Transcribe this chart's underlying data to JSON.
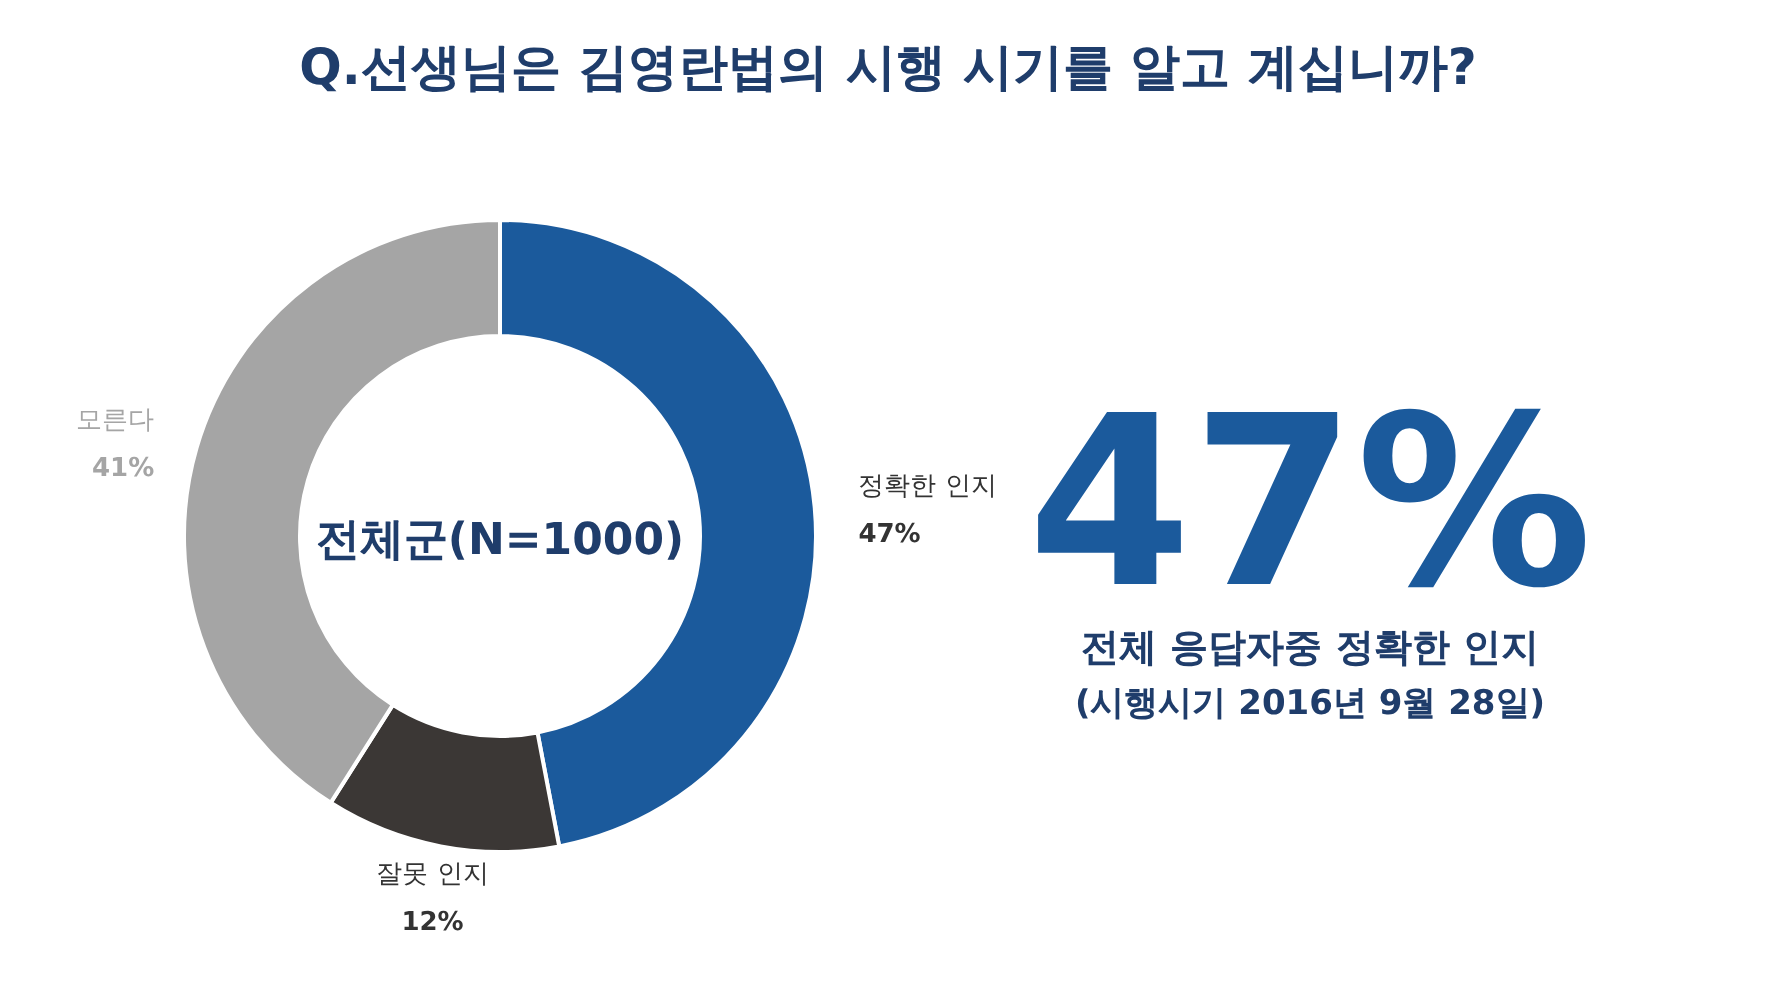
{
  "chart_data": {
    "type": "donut",
    "title": "Q.선생님은 김영란법의 시행 시기를 알고 계십니까?",
    "categories": [
      "정확한 인지",
      "잘못 인지",
      "모른다"
    ],
    "values": [
      47,
      12,
      41
    ],
    "colors": [
      "#1b5a9c",
      "#3b3735",
      "#a5a5a5"
    ],
    "value_labels": [
      "47%",
      "12%",
      "41%"
    ],
    "annotations": [
      "전체군(N=1000)",
      "47%",
      "전체 응답자중 정확한 인지",
      "(시행시기 2016년 9월 28일)"
    ]
  }
}
